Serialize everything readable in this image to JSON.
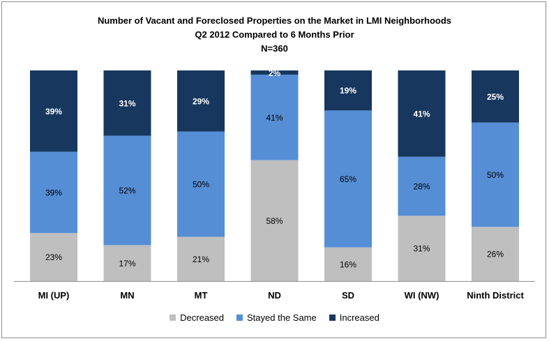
{
  "chart_data": {
    "type": "bar",
    "stacked": true,
    "normalized": true,
    "title": "Number of Vacant and Foreclosed Properties on the Market in LMI Neighborhoods",
    "subtitle": "Q2 2012 Compared to 6 Months Prior",
    "subtitle2": "N=360",
    "categories": [
      "MI (UP)",
      "MN",
      "MT",
      "ND",
      "SD",
      "WI (NW)",
      "Ninth District"
    ],
    "series": [
      {
        "name": "Decreased",
        "color": "#bfbfbf",
        "values": [
          23,
          17,
          21,
          58,
          16,
          31,
          26
        ],
        "labels": [
          "23%",
          "17%",
          "21%",
          "58%",
          "16%",
          "31%",
          "26%"
        ]
      },
      {
        "name": "Stayed the Same",
        "color": "#558ed5",
        "values": [
          39,
          52,
          50,
          41,
          65,
          28,
          50
        ],
        "labels": [
          "39%",
          "52%",
          "50%",
          "41%",
          "65%",
          "28%",
          "50%"
        ]
      },
      {
        "name": "Increased",
        "color": "#17375e",
        "values": [
          39,
          31,
          29,
          2,
          19,
          41,
          25
        ],
        "labels": [
          "39%",
          "31%",
          "29%",
          "2%",
          "19%",
          "41%",
          "25%"
        ]
      }
    ],
    "legend_position": "bottom",
    "grid": false
  }
}
